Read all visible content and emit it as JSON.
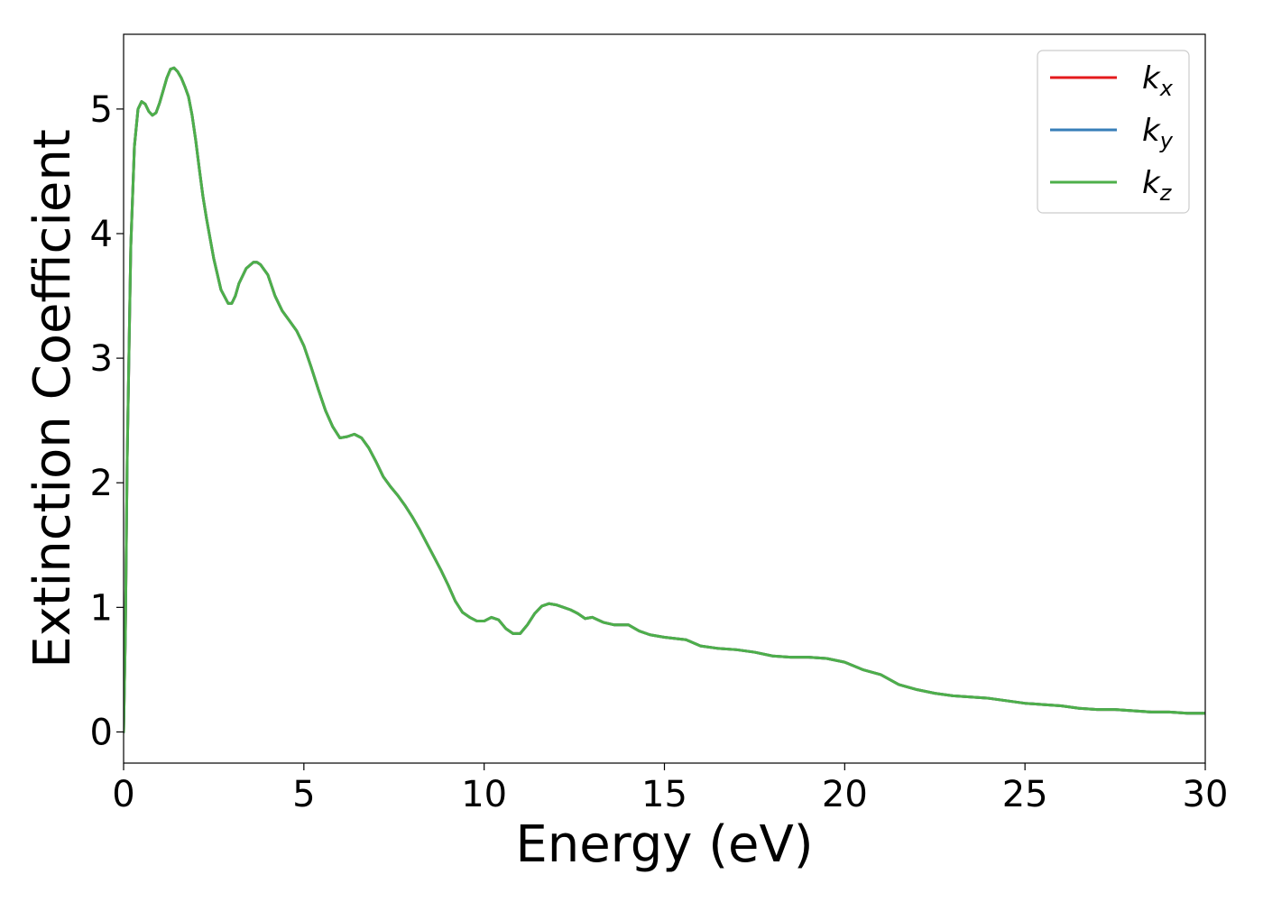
{
  "chart_data": {
    "type": "line",
    "title": "",
    "xlabel": "Energy (eV)",
    "ylabel": "Extinction Coefficient",
    "xlim": [
      0,
      30
    ],
    "ylim": [
      -0.25,
      5.6
    ],
    "xticks": [
      "0",
      "5",
      "10",
      "15",
      "20",
      "25",
      "30"
    ],
    "yticks": [
      "0",
      "1",
      "2",
      "3",
      "4",
      "5"
    ],
    "grid": false,
    "legend_position": "top-right",
    "x": [
      0,
      0.05,
      0.1,
      0.2,
      0.3,
      0.4,
      0.5,
      0.6,
      0.7,
      0.8,
      0.9,
      1.0,
      1.1,
      1.2,
      1.3,
      1.4,
      1.5,
      1.6,
      1.7,
      1.8,
      1.9,
      2.0,
      2.1,
      2.2,
      2.3,
      2.5,
      2.7,
      2.9,
      3.0,
      3.1,
      3.2,
      3.4,
      3.6,
      3.7,
      3.8,
      4.0,
      4.2,
      4.4,
      4.6,
      4.8,
      5.0,
      5.2,
      5.4,
      5.6,
      5.8,
      6.0,
      6.2,
      6.4,
      6.6,
      6.8,
      7.0,
      7.2,
      7.4,
      7.6,
      7.8,
      8.0,
      8.2,
      8.4,
      8.6,
      8.8,
      9.0,
      9.2,
      9.4,
      9.6,
      9.8,
      10.0,
      10.2,
      10.4,
      10.6,
      10.8,
      11.0,
      11.2,
      11.4,
      11.6,
      11.8,
      12.0,
      12.2,
      12.4,
      12.6,
      12.8,
      13.0,
      13.3,
      13.6,
      14.0,
      14.3,
      14.6,
      15.0,
      15.3,
      15.6,
      16.0,
      16.5,
      17.0,
      17.5,
      18.0,
      18.5,
      19.0,
      19.5,
      20.0,
      20.5,
      21.0,
      21.5,
      22.0,
      22.5,
      23.0,
      23.5,
      24.0,
      24.5,
      25.0,
      25.5,
      26.0,
      26.5,
      27.0,
      27.5,
      28.0,
      28.5,
      29.0,
      29.5,
      30.0
    ],
    "series": [
      {
        "name": "k_x",
        "color": "#e41a1c",
        "values": [
          0.0,
          0.8,
          2.2,
          3.9,
          4.7,
          5.0,
          5.06,
          5.04,
          4.98,
          4.95,
          4.97,
          5.05,
          5.15,
          5.25,
          5.32,
          5.33,
          5.3,
          5.25,
          5.18,
          5.1,
          4.95,
          4.75,
          4.52,
          4.3,
          4.12,
          3.8,
          3.55,
          3.44,
          3.44,
          3.5,
          3.6,
          3.72,
          3.77,
          3.77,
          3.75,
          3.67,
          3.5,
          3.38,
          3.3,
          3.22,
          3.1,
          2.93,
          2.75,
          2.58,
          2.45,
          2.36,
          2.37,
          2.39,
          2.36,
          2.28,
          2.17,
          2.05,
          1.97,
          1.9,
          1.82,
          1.73,
          1.63,
          1.52,
          1.41,
          1.3,
          1.18,
          1.05,
          0.96,
          0.92,
          0.89,
          0.89,
          0.92,
          0.9,
          0.83,
          0.79,
          0.79,
          0.86,
          0.95,
          1.01,
          1.03,
          1.02,
          1.0,
          0.98,
          0.95,
          0.91,
          0.92,
          0.88,
          0.86,
          0.86,
          0.81,
          0.78,
          0.76,
          0.75,
          0.74,
          0.69,
          0.67,
          0.66,
          0.64,
          0.61,
          0.6,
          0.6,
          0.59,
          0.56,
          0.5,
          0.46,
          0.38,
          0.34,
          0.31,
          0.29,
          0.28,
          0.27,
          0.25,
          0.23,
          0.22,
          0.21,
          0.19,
          0.18,
          0.18,
          0.17,
          0.16,
          0.16,
          0.15,
          0.15
        ]
      },
      {
        "name": "k_y",
        "color": "#377eb8",
        "values": [
          0.0,
          0.8,
          2.2,
          3.9,
          4.7,
          5.0,
          5.06,
          5.04,
          4.98,
          4.95,
          4.97,
          5.05,
          5.15,
          5.25,
          5.32,
          5.33,
          5.3,
          5.25,
          5.18,
          5.1,
          4.95,
          4.75,
          4.52,
          4.3,
          4.12,
          3.8,
          3.55,
          3.44,
          3.44,
          3.5,
          3.6,
          3.72,
          3.77,
          3.77,
          3.75,
          3.67,
          3.5,
          3.38,
          3.3,
          3.22,
          3.1,
          2.93,
          2.75,
          2.58,
          2.45,
          2.36,
          2.37,
          2.39,
          2.36,
          2.28,
          2.17,
          2.05,
          1.97,
          1.9,
          1.82,
          1.73,
          1.63,
          1.52,
          1.41,
          1.3,
          1.18,
          1.05,
          0.96,
          0.92,
          0.89,
          0.89,
          0.92,
          0.9,
          0.83,
          0.79,
          0.79,
          0.86,
          0.95,
          1.01,
          1.03,
          1.02,
          1.0,
          0.98,
          0.95,
          0.91,
          0.92,
          0.88,
          0.86,
          0.86,
          0.81,
          0.78,
          0.76,
          0.75,
          0.74,
          0.69,
          0.67,
          0.66,
          0.64,
          0.61,
          0.6,
          0.6,
          0.59,
          0.56,
          0.5,
          0.46,
          0.38,
          0.34,
          0.31,
          0.29,
          0.28,
          0.27,
          0.25,
          0.23,
          0.22,
          0.21,
          0.19,
          0.18,
          0.18,
          0.17,
          0.16,
          0.16,
          0.15,
          0.15
        ]
      },
      {
        "name": "k_z",
        "color": "#4daf4a",
        "values": [
          0.0,
          0.8,
          2.2,
          3.9,
          4.7,
          5.0,
          5.06,
          5.04,
          4.98,
          4.95,
          4.97,
          5.05,
          5.15,
          5.25,
          5.32,
          5.33,
          5.3,
          5.25,
          5.18,
          5.1,
          4.95,
          4.75,
          4.52,
          4.3,
          4.12,
          3.8,
          3.55,
          3.44,
          3.44,
          3.5,
          3.6,
          3.72,
          3.77,
          3.77,
          3.75,
          3.67,
          3.5,
          3.38,
          3.3,
          3.22,
          3.1,
          2.93,
          2.75,
          2.58,
          2.45,
          2.36,
          2.37,
          2.39,
          2.36,
          2.28,
          2.17,
          2.05,
          1.97,
          1.9,
          1.82,
          1.73,
          1.63,
          1.52,
          1.41,
          1.3,
          1.18,
          1.05,
          0.96,
          0.92,
          0.89,
          0.89,
          0.92,
          0.9,
          0.83,
          0.79,
          0.79,
          0.86,
          0.95,
          1.01,
          1.03,
          1.02,
          1.0,
          0.98,
          0.95,
          0.91,
          0.92,
          0.88,
          0.86,
          0.86,
          0.81,
          0.78,
          0.76,
          0.75,
          0.74,
          0.69,
          0.67,
          0.66,
          0.64,
          0.61,
          0.6,
          0.6,
          0.59,
          0.56,
          0.5,
          0.46,
          0.38,
          0.34,
          0.31,
          0.29,
          0.28,
          0.27,
          0.25,
          0.23,
          0.22,
          0.21,
          0.19,
          0.18,
          0.18,
          0.17,
          0.16,
          0.16,
          0.15,
          0.15
        ]
      }
    ],
    "legend": [
      {
        "base": "k",
        "sub": "x",
        "color": "#e41a1c"
      },
      {
        "base": "k",
        "sub": "y",
        "color": "#377eb8"
      },
      {
        "base": "k",
        "sub": "z",
        "color": "#4daf4a"
      }
    ]
  }
}
